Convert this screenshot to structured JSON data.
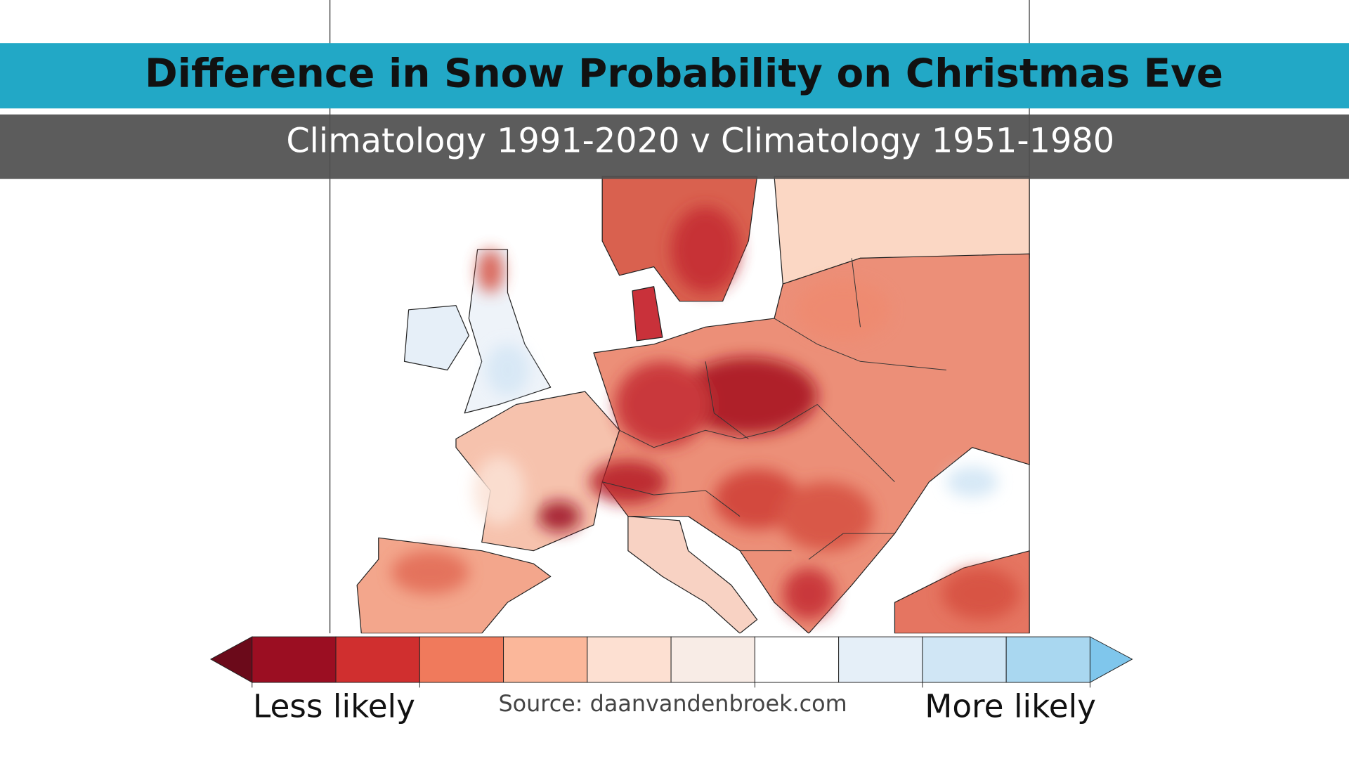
{
  "header": {
    "title": "Difference in Snow Probability on Christmas Eve",
    "subtitle": "Climatology 1991-2020 v Climatology 1951-1980"
  },
  "legend": {
    "low_label": "Less likely",
    "high_label": "More likely"
  },
  "source": "Source: daanvandenbroek.com"
}
